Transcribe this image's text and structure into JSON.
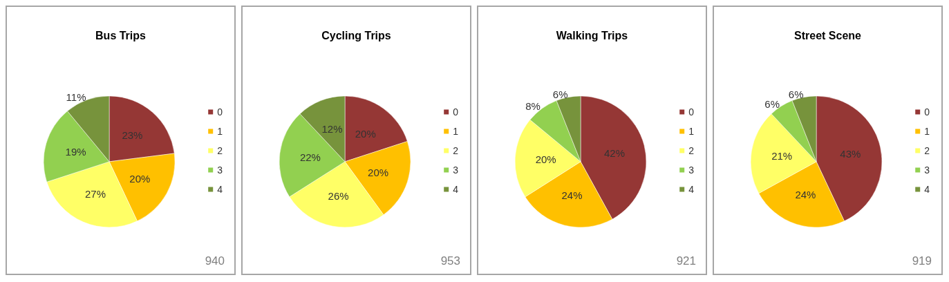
{
  "chart_data": [
    {
      "type": "pie",
      "title": "Bus Trips",
      "categories": [
        "0",
        "1",
        "2",
        "3",
        "4"
      ],
      "values": [
        23,
        20,
        27,
        19,
        11
      ],
      "value_labels": [
        "23%",
        "20%",
        "27%",
        "19%",
        "11%"
      ],
      "colors": [
        "#953735",
        "#ffc000",
        "#ffff66",
        "#92d050",
        "#77933c"
      ],
      "legend": "right",
      "annotations": [
        "940"
      ]
    },
    {
      "type": "pie",
      "title": "Cycling Trips",
      "categories": [
        "0",
        "1",
        "2",
        "3",
        "4"
      ],
      "values": [
        20,
        20,
        26,
        22,
        12
      ],
      "value_labels": [
        "20%",
        "20%",
        "26%",
        "22%",
        "12%"
      ],
      "colors": [
        "#953735",
        "#ffc000",
        "#ffff66",
        "#92d050",
        "#77933c"
      ],
      "legend": "right",
      "annotations": [
        "953"
      ]
    },
    {
      "type": "pie",
      "title": "Walking Trips",
      "categories": [
        "0",
        "1",
        "2",
        "3",
        "4"
      ],
      "values": [
        42,
        24,
        20,
        8,
        6
      ],
      "value_labels": [
        "42%",
        "24%",
        "20%",
        "8%",
        "6%"
      ],
      "colors": [
        "#953735",
        "#ffc000",
        "#ffff66",
        "#92d050",
        "#77933c"
      ],
      "legend": "right",
      "annotations": [
        "921"
      ]
    },
    {
      "type": "pie",
      "title": "Street Scene",
      "categories": [
        "0",
        "1",
        "2",
        "3",
        "4"
      ],
      "values": [
        43,
        24,
        21,
        6,
        6
      ],
      "value_labels": [
        "43%",
        "24%",
        "21%",
        "6%",
        "6%"
      ],
      "colors": [
        "#953735",
        "#ffc000",
        "#ffff66",
        "#92d050",
        "#77933c"
      ],
      "legend": "right",
      "annotations": [
        "919"
      ]
    }
  ]
}
